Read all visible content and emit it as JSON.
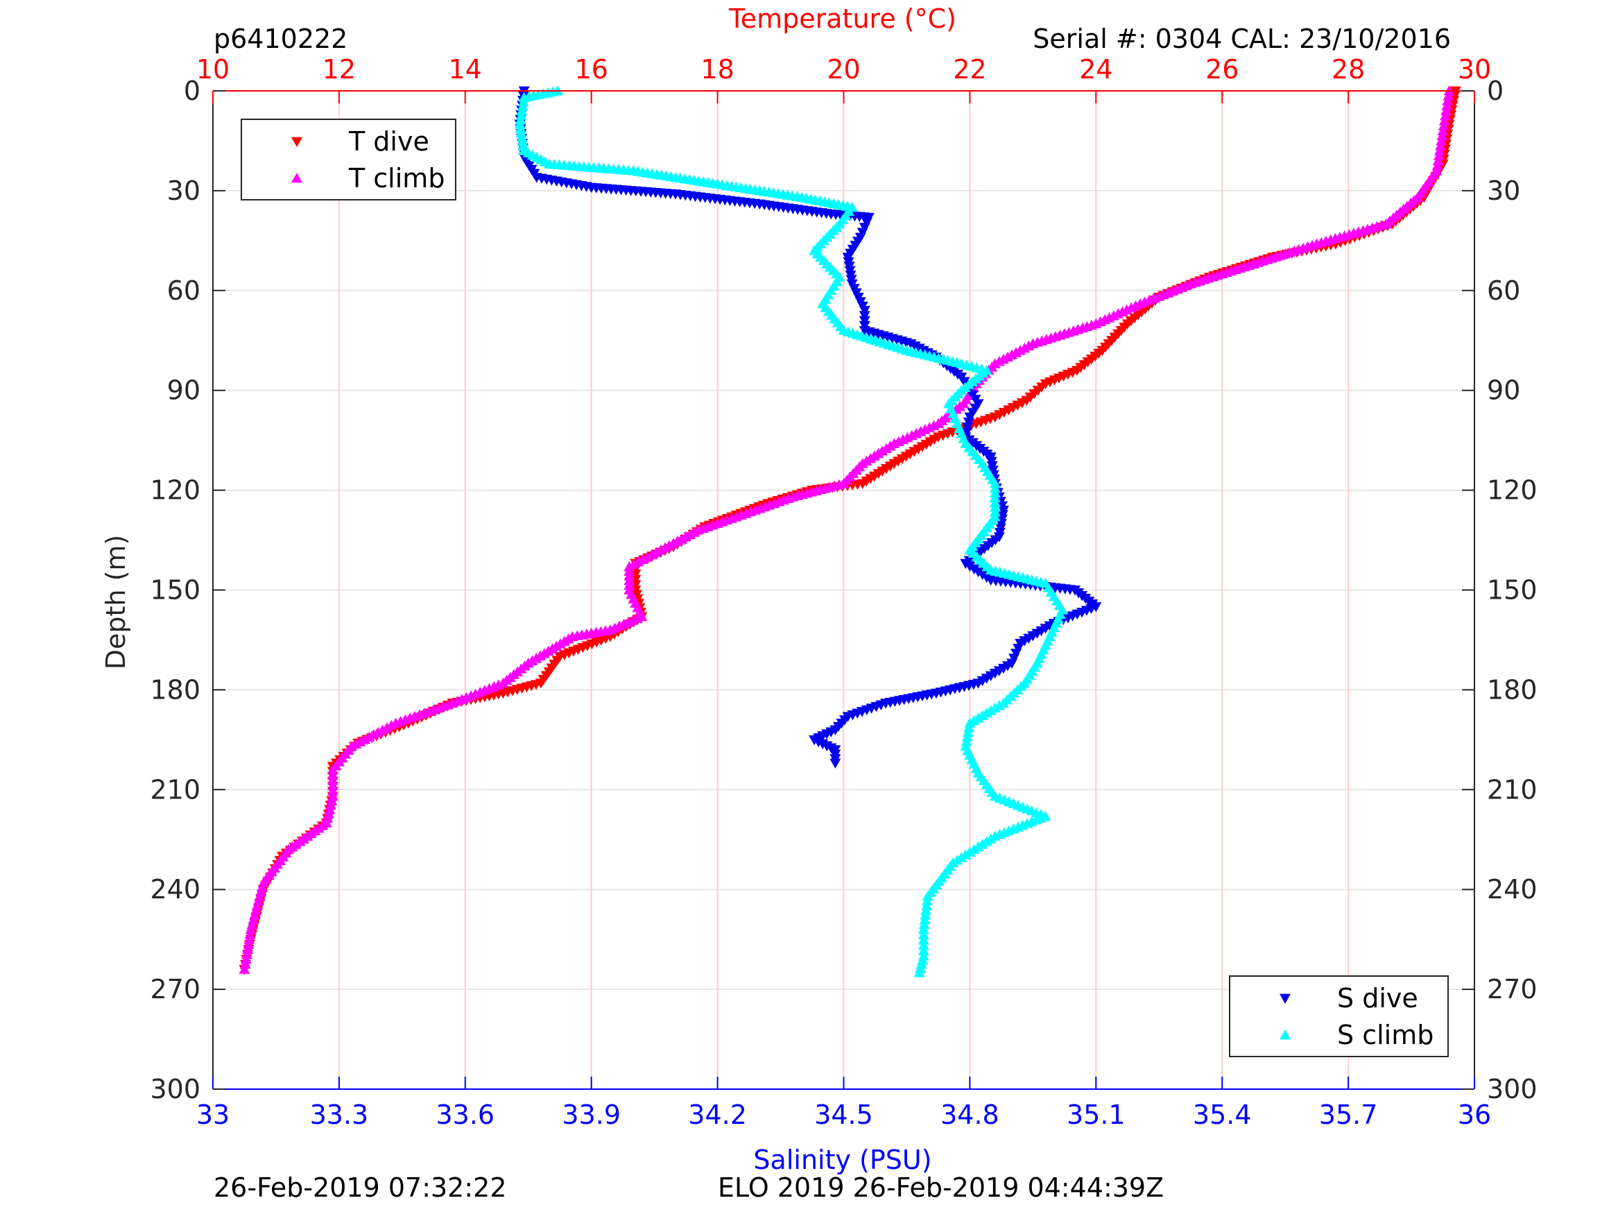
{
  "header": {
    "left": "p6410222",
    "right": "Serial #: 0304  CAL: 23/10/2016"
  },
  "footer": {
    "left": "26-Feb-2019 07:32:22",
    "center": "ELO 2019 26-Feb-2019 04:44:39Z"
  },
  "colors": {
    "t_dive": "#ff0000",
    "t_climb": "#ff00ff",
    "s_dive": "#0000ee",
    "s_climb": "#00ffff",
    "temp_axis": "#ff0000",
    "sal_axis": "#0000ff",
    "grid": "#e6e6e6",
    "temp_grid": "#ffcccc"
  },
  "chart_data": {
    "type": "scatter",
    "title": "",
    "ylabel": "Depth (m)",
    "ylim": [
      0,
      300
    ],
    "y_reversed": true,
    "yticks": [
      0,
      30,
      60,
      90,
      120,
      150,
      180,
      210,
      240,
      270,
      300
    ],
    "temperature_axis": {
      "label": "Temperature (°C)",
      "position": "top",
      "lim": [
        10,
        30
      ],
      "ticks": [
        10,
        12,
        14,
        16,
        18,
        20,
        22,
        24,
        26,
        28,
        30
      ]
    },
    "salinity_axis": {
      "label": "Salinity (PSU)",
      "position": "bottom",
      "lim": [
        33,
        36
      ],
      "ticks": [
        "33",
        "33.3",
        "33.6",
        "33.9",
        "34.2",
        "34.5",
        "34.8",
        "35.1",
        "35.4",
        "35.7",
        "36"
      ]
    },
    "grid": true,
    "legends": [
      {
        "placement": "top-left",
        "entries": [
          "T dive",
          "T climb"
        ]
      },
      {
        "placement": "bottom-right",
        "entries": [
          "S dive",
          "S climb"
        ]
      }
    ],
    "series": [
      {
        "name": "T dive",
        "axis": "temperature",
        "marker": "triangle-down",
        "points": [
          [
            29.7,
            0
          ],
          [
            29.6,
            10
          ],
          [
            29.5,
            22
          ],
          [
            29.2,
            32
          ],
          [
            28.7,
            40
          ],
          [
            27.8,
            46
          ],
          [
            26.8,
            50
          ],
          [
            25.8,
            56
          ],
          [
            25.0,
            62
          ],
          [
            24.5,
            70
          ],
          [
            24.1,
            78
          ],
          [
            23.7,
            84
          ],
          [
            23.2,
            88
          ],
          [
            22.9,
            93
          ],
          [
            22.4,
            98
          ],
          [
            21.5,
            104
          ],
          [
            20.8,
            112
          ],
          [
            20.3,
            118
          ],
          [
            19.5,
            120
          ],
          [
            18.8,
            124
          ],
          [
            17.8,
            131
          ],
          [
            17.3,
            137
          ],
          [
            16.7,
            142
          ],
          [
            16.7,
            150
          ],
          [
            16.8,
            158
          ],
          [
            16.3,
            164
          ],
          [
            15.5,
            170
          ],
          [
            15.2,
            178
          ],
          [
            14.6,
            181
          ],
          [
            13.8,
            184
          ],
          [
            13.1,
            190
          ],
          [
            12.3,
            196
          ],
          [
            11.9,
            203
          ],
          [
            11.9,
            212
          ],
          [
            11.8,
            220
          ],
          [
            11.1,
            230
          ],
          [
            10.8,
            240
          ],
          [
            10.6,
            255
          ],
          [
            10.5,
            264
          ]
        ]
      },
      {
        "name": "T climb",
        "axis": "temperature",
        "marker": "triangle-up",
        "points": [
          [
            29.6,
            0
          ],
          [
            29.5,
            12
          ],
          [
            29.4,
            24
          ],
          [
            29.1,
            32
          ],
          [
            28.6,
            40
          ],
          [
            27.5,
            46
          ],
          [
            26.5,
            52
          ],
          [
            25.5,
            58
          ],
          [
            24.7,
            64
          ],
          [
            24.0,
            70
          ],
          [
            23.0,
            76
          ],
          [
            22.4,
            82
          ],
          [
            22.1,
            88
          ],
          [
            21.9,
            94
          ],
          [
            21.5,
            100
          ],
          [
            20.8,
            106
          ],
          [
            20.3,
            112
          ],
          [
            20.0,
            118
          ],
          [
            19.2,
            122
          ],
          [
            18.6,
            126
          ],
          [
            17.7,
            132
          ],
          [
            17.1,
            138
          ],
          [
            16.6,
            143
          ],
          [
            16.6,
            150
          ],
          [
            16.8,
            158
          ],
          [
            16.3,
            162
          ],
          [
            15.7,
            164
          ],
          [
            15.0,
            172
          ],
          [
            14.6,
            178
          ],
          [
            13.8,
            184
          ],
          [
            12.9,
            190
          ],
          [
            12.2,
            197
          ],
          [
            11.9,
            204
          ],
          [
            11.9,
            212
          ],
          [
            11.8,
            220
          ],
          [
            11.2,
            228
          ],
          [
            10.8,
            238
          ],
          [
            10.6,
            252
          ],
          [
            10.5,
            264
          ]
        ]
      },
      {
        "name": "S dive",
        "axis": "salinity",
        "marker": "triangle-down",
        "points": [
          [
            33.74,
            0
          ],
          [
            33.73,
            10
          ],
          [
            33.74,
            20
          ],
          [
            33.77,
            26
          ],
          [
            33.9,
            29
          ],
          [
            34.1,
            31
          ],
          [
            34.3,
            34
          ],
          [
            34.47,
            37
          ],
          [
            34.56,
            38
          ],
          [
            34.54,
            44
          ],
          [
            34.51,
            50
          ],
          [
            34.52,
            58
          ],
          [
            34.55,
            66
          ],
          [
            34.55,
            72
          ],
          [
            34.66,
            76
          ],
          [
            34.72,
            80
          ],
          [
            34.78,
            86
          ],
          [
            34.8,
            90
          ],
          [
            34.82,
            94
          ],
          [
            34.8,
            98
          ],
          [
            34.79,
            104
          ],
          [
            34.85,
            110
          ],
          [
            34.86,
            118
          ],
          [
            34.88,
            126
          ],
          [
            34.87,
            134
          ],
          [
            34.79,
            142
          ],
          [
            34.85,
            147
          ],
          [
            35.05,
            150
          ],
          [
            35.1,
            155
          ],
          [
            35.0,
            160
          ],
          [
            34.92,
            166
          ],
          [
            34.9,
            172
          ],
          [
            34.82,
            178
          ],
          [
            34.72,
            181
          ],
          [
            34.6,
            184
          ],
          [
            34.51,
            188
          ],
          [
            34.48,
            192
          ],
          [
            34.43,
            195
          ],
          [
            34.48,
            198
          ],
          [
            34.48,
            202
          ]
        ]
      },
      {
        "name": "S climb",
        "axis": "salinity",
        "marker": "triangle-up",
        "points": [
          [
            33.82,
            0
          ],
          [
            33.74,
            2
          ],
          [
            33.73,
            10
          ],
          [
            33.74,
            18
          ],
          [
            33.8,
            22
          ],
          [
            34.0,
            24
          ],
          [
            34.2,
            28
          ],
          [
            34.4,
            32
          ],
          [
            34.52,
            35
          ],
          [
            34.49,
            40
          ],
          [
            34.43,
            48
          ],
          [
            34.49,
            56
          ],
          [
            34.45,
            64
          ],
          [
            34.5,
            72
          ],
          [
            34.65,
            78
          ],
          [
            34.78,
            82
          ],
          [
            34.84,
            84
          ],
          [
            34.78,
            90
          ],
          [
            34.75,
            94
          ],
          [
            34.77,
            100
          ],
          [
            34.79,
            106
          ],
          [
            34.83,
            112
          ],
          [
            34.86,
            118
          ],
          [
            34.86,
            128
          ],
          [
            34.8,
            138
          ],
          [
            34.85,
            144
          ],
          [
            34.98,
            148
          ],
          [
            35.02,
            156
          ],
          [
            34.99,
            164
          ],
          [
            34.96,
            172
          ],
          [
            34.93,
            178
          ],
          [
            34.88,
            184
          ],
          [
            34.8,
            190
          ],
          [
            34.79,
            197
          ],
          [
            34.82,
            205
          ],
          [
            34.86,
            212
          ],
          [
            34.98,
            218
          ],
          [
            34.86,
            224
          ],
          [
            34.76,
            232
          ],
          [
            34.7,
            242
          ],
          [
            34.69,
            252
          ],
          [
            34.69,
            260
          ],
          [
            34.68,
            265
          ]
        ]
      }
    ]
  }
}
